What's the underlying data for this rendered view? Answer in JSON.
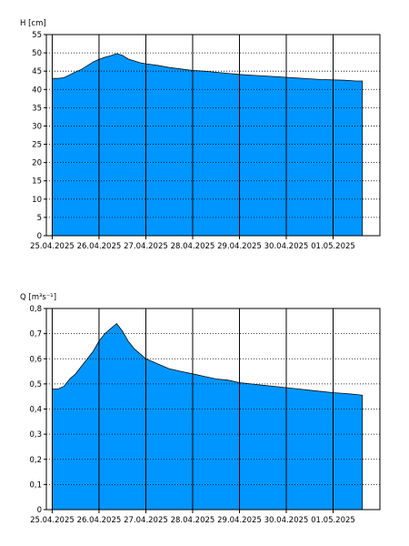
{
  "chart_data": [
    {
      "type": "area",
      "ylabel": "H [cm]",
      "ylim": [
        0,
        55
      ],
      "yticks": [
        0,
        5,
        10,
        15,
        20,
        25,
        30,
        35,
        40,
        45,
        50,
        55
      ],
      "ytick_labels": [
        "0",
        "5",
        "10",
        "15",
        "20",
        "25",
        "30",
        "35",
        "40",
        "45",
        "50",
        "55"
      ],
      "xlim": [
        "2025-04-24T21:00",
        "2025-05-02T00:00"
      ],
      "xticks": [
        "2025-04-25",
        "2025-04-26",
        "2025-04-27",
        "2025-04-28",
        "2025-04-29",
        "2025-04-30",
        "2025-05-01"
      ],
      "xtick_labels": [
        "25.04.2025",
        "26.04.2025",
        "27.04.2025",
        "28.04.2025",
        "29.04.2025",
        "30.04.2025",
        "01.05.2025"
      ],
      "grid": "dotted horizontal at y ticks, solid vertical at day boundaries",
      "fill_color": "#0096ff",
      "series": [
        {
          "x": [
            "2025-04-25T00:00",
            "2025-04-25T03:00",
            "2025-04-25T06:00",
            "2025-04-25T09:00",
            "2025-04-25T12:00",
            "2025-04-25T15:00",
            "2025-04-25T18:00",
            "2025-04-25T21:00",
            "2025-04-26T00:00",
            "2025-04-26T03:00",
            "2025-04-26T06:00",
            "2025-04-26T09:00",
            "2025-04-26T12:00",
            "2025-04-26T15:00",
            "2025-04-26T18:00",
            "2025-04-26T21:00",
            "2025-04-27T00:00",
            "2025-04-27T06:00",
            "2025-04-27T12:00",
            "2025-04-27T18:00",
            "2025-04-28T00:00",
            "2025-04-28T06:00",
            "2025-04-28T12:00",
            "2025-04-28T18:00",
            "2025-04-29T00:00",
            "2025-04-29T06:00",
            "2025-04-29T12:00",
            "2025-04-29T18:00",
            "2025-04-30T00:00",
            "2025-04-30T06:00",
            "2025-04-30T12:00",
            "2025-04-30T18:00",
            "2025-05-01T00:00",
            "2025-05-01T06:00",
            "2025-05-01T12:00",
            "2025-05-01T15:00"
          ],
          "values": [
            43.0,
            43.0,
            43.2,
            44.0,
            44.8,
            45.5,
            46.5,
            47.5,
            48.2,
            48.8,
            49.2,
            49.8,
            49.3,
            48.3,
            47.8,
            47.3,
            47.0,
            46.6,
            46.0,
            45.6,
            45.2,
            45.0,
            44.7,
            44.4,
            44.1,
            43.9,
            43.7,
            43.5,
            43.3,
            43.1,
            42.9,
            42.7,
            42.6,
            42.5,
            42.3,
            42.3
          ]
        }
      ]
    },
    {
      "type": "area",
      "ylabel": "Q [m³s⁻¹]",
      "ylim": [
        0,
        0.8
      ],
      "yticks": [
        0,
        0.1,
        0.2,
        0.3,
        0.4,
        0.5,
        0.6,
        0.7,
        0.8
      ],
      "ytick_labels": [
        "0",
        "0,1",
        "0,2",
        "0,3",
        "0,4",
        "0,5",
        "0,6",
        "0,7",
        "0,8"
      ],
      "xlim": [
        "2025-04-24T21:00",
        "2025-05-02T00:00"
      ],
      "xticks": [
        "2025-04-25",
        "2025-04-26",
        "2025-04-27",
        "2025-04-28",
        "2025-04-29",
        "2025-04-30",
        "2025-05-01"
      ],
      "xtick_labels": [
        "25.04.2025",
        "26.04.2025",
        "27.04.2025",
        "28.04.2025",
        "29.04.2025",
        "30.04.2025",
        "01.05.2025"
      ],
      "grid": "dotted horizontal at y ticks, solid vertical at day boundaries",
      "fill_color": "#0096ff",
      "series": [
        {
          "x": [
            "2025-04-25T00:00",
            "2025-04-25T03:00",
            "2025-04-25T06:00",
            "2025-04-25T09:00",
            "2025-04-25T12:00",
            "2025-04-25T15:00",
            "2025-04-25T18:00",
            "2025-04-25T21:00",
            "2025-04-26T00:00",
            "2025-04-26T03:00",
            "2025-04-26T06:00",
            "2025-04-26T09:00",
            "2025-04-26T12:00",
            "2025-04-26T15:00",
            "2025-04-26T18:00",
            "2025-04-26T21:00",
            "2025-04-27T00:00",
            "2025-04-27T06:00",
            "2025-04-27T12:00",
            "2025-04-27T18:00",
            "2025-04-28T00:00",
            "2025-04-28T06:00",
            "2025-04-28T12:00",
            "2025-04-28T18:00",
            "2025-04-29T00:00",
            "2025-04-29T06:00",
            "2025-04-29T12:00",
            "2025-04-29T18:00",
            "2025-04-30T00:00",
            "2025-04-30T06:00",
            "2025-04-30T12:00",
            "2025-04-30T18:00",
            "2025-05-01T00:00",
            "2025-05-01T06:00",
            "2025-05-01T12:00",
            "2025-05-01T15:00"
          ],
          "values": [
            0.48,
            0.48,
            0.49,
            0.52,
            0.54,
            0.57,
            0.6,
            0.63,
            0.67,
            0.7,
            0.72,
            0.74,
            0.71,
            0.67,
            0.64,
            0.62,
            0.6,
            0.58,
            0.56,
            0.55,
            0.54,
            0.53,
            0.52,
            0.515,
            0.505,
            0.5,
            0.495,
            0.49,
            0.485,
            0.48,
            0.475,
            0.47,
            0.465,
            0.462,
            0.458,
            0.455
          ]
        }
      ]
    }
  ]
}
